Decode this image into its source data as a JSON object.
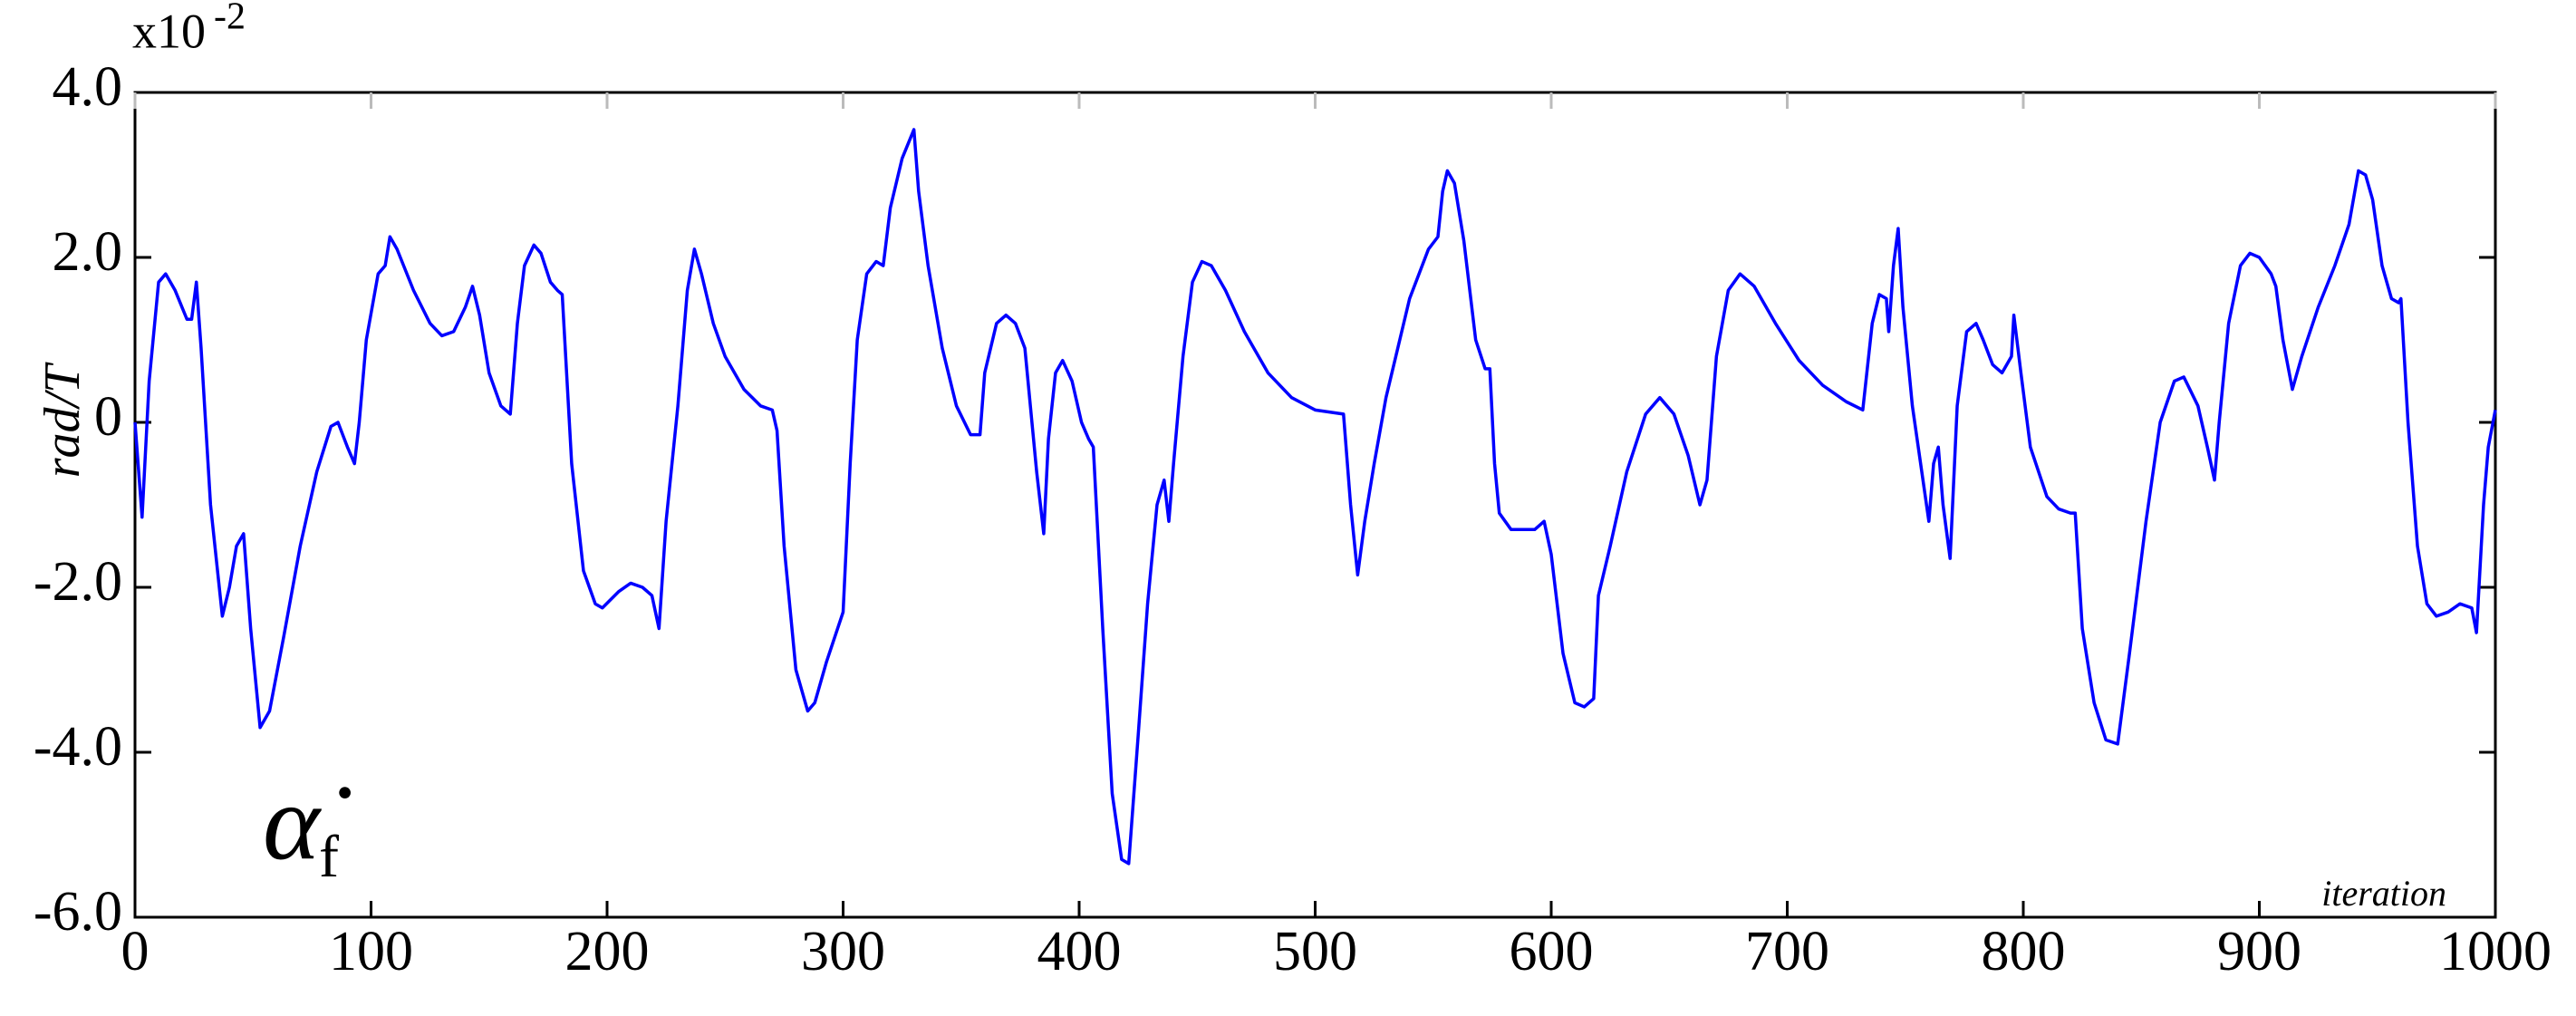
{
  "chart_data": {
    "type": "line",
    "axis_multiplier": {
      "base": "x10",
      "exponent": "-2"
    },
    "ylabel": "rad/T",
    "xlabel": "iteration",
    "annotation": {
      "symbol": "α̇",
      "subscript": "f"
    },
    "xlim": [
      0,
      1000
    ],
    "xticks": [
      0,
      100,
      200,
      300,
      400,
      500,
      600,
      700,
      800,
      900,
      1000
    ],
    "ylim": [
      -6,
      4
    ],
    "yticks": [
      {
        "value": -6,
        "label": "-6.0"
      },
      {
        "value": -4,
        "label": "-4.0"
      },
      {
        "value": -2,
        "label": "-2.0"
      },
      0,
      {
        "value": 2,
        "label": "2.0"
      },
      {
        "value": 4,
        "label": "4.0"
      }
    ],
    "grid": false,
    "x": [
      0,
      3,
      6,
      10,
      13,
      17,
      22,
      24,
      26,
      28,
      32,
      37,
      40,
      43,
      46,
      49,
      53,
      57,
      63,
      70,
      77,
      83,
      86,
      90,
      93,
      95,
      98,
      103,
      106,
      108,
      111,
      118,
      125,
      130,
      135,
      140,
      143,
      146,
      150,
      155,
      159,
      162,
      165,
      169,
      172,
      176,
      179,
      181,
      185,
      190,
      195,
      198,
      205,
      210,
      215,
      219,
      222,
      225,
      230,
      234,
      237,
      240,
      245,
      250,
      258,
      265,
      270,
      272,
      275,
      280,
      285,
      288,
      293,
      300,
      303,
      306,
      310,
      314,
      317,
      320,
      325,
      330,
      332,
      336,
      342,
      348,
      354,
      358,
      360,
      365,
      369,
      373,
      377,
      380,
      382,
      385,
      387,
      390,
      393,
      397,
      401,
      404,
      406,
      410,
      414,
      418,
      421,
      425,
      429,
      433,
      436,
      438,
      440,
      444,
      448,
      452,
      456,
      462,
      470,
      480,
      490,
      500,
      512,
      515,
      518,
      521,
      525,
      530,
      540,
      548,
      552,
      554,
      556,
      559,
      563,
      568,
      572,
      574,
      576,
      578,
      583,
      588,
      593,
      597,
      600,
      605,
      610,
      614,
      618,
      620,
      625,
      632,
      640,
      646,
      652,
      658,
      663,
      666,
      670,
      675,
      680,
      686,
      695,
      705,
      715,
      725,
      732,
      736,
      739,
      742,
      743,
      745,
      747,
      749,
      753,
      757,
      760,
      762,
      764,
      766,
      769,
      772,
      776,
      780,
      783,
      787,
      791,
      795,
      796,
      799,
      803,
      810,
      815,
      820,
      822,
      825,
      830,
      835,
      840,
      845,
      852,
      858,
      864,
      868,
      874,
      878,
      881,
      883,
      887,
      892,
      896,
      900,
      905,
      907,
      910,
      914,
      918,
      925,
      932,
      938,
      942,
      945,
      948,
      952,
      956,
      959,
      960,
      963,
      967,
      971,
      975,
      980,
      985,
      990,
      992,
      995,
      997,
      1000
    ],
    "series": [
      {
        "color": "#0000ff",
        "values": [
          0,
          -1.15,
          0.5,
          1.7,
          1.8,
          1.6,
          1.25,
          1.25,
          1.7,
          0.9,
          -1,
          -2.35,
          -2.0,
          -1.5,
          -1.35,
          -2.5,
          -3.7,
          -3.5,
          -2.6,
          -1.5,
          -0.6,
          -0.05,
          0,
          -0.3,
          -0.5,
          0,
          1.0,
          1.8,
          1.9,
          2.25,
          2.1,
          1.6,
          1.2,
          1.05,
          1.1,
          1.4,
          1.65,
          1.3,
          0.6,
          0.2,
          0.1,
          1.2,
          1.9,
          2.15,
          2.05,
          1.7,
          1.6,
          1.55,
          -0.5,
          -1.8,
          -2.2,
          -2.25,
          -2.05,
          -1.95,
          -2.0,
          -2.1,
          -2.5,
          -1.2,
          0.2,
          1.6,
          2.1,
          1.8,
          1.2,
          0.8,
          0.4,
          0.2,
          0.15,
          -0.1,
          -1.5,
          -3.0,
          -3.5,
          -3.4,
          -2.9,
          -2.3,
          -0.5,
          1.0,
          1.8,
          1.95,
          1.9,
          2.6,
          3.2,
          3.55,
          2.8,
          1.9,
          0.9,
          0.2,
          -0.15,
          -0.15,
          0.6,
          1.2,
          1.3,
          1.2,
          0.9,
          0,
          -0.6,
          -1.35,
          -0.2,
          0.6,
          0.75,
          0.5,
          0,
          -0.2,
          -0.3,
          -2.5,
          -4.5,
          -5.3,
          -5.35,
          -3.8,
          -2.2,
          -1.0,
          -0.7,
          -1.2,
          -0.5,
          0.8,
          1.7,
          1.95,
          1.9,
          1.6,
          1.1,
          0.6,
          0.3,
          0.15,
          0.1,
          -1.0,
          -1.85,
          -1.2,
          -0.5,
          0.3,
          1.5,
          2.1,
          2.25,
          2.8,
          3.05,
          2.9,
          2.2,
          1.0,
          0.65,
          0.65,
          -0.5,
          -1.1,
          -1.3,
          -1.3,
          -1.3,
          -1.2,
          -1.6,
          -2.8,
          -3.4,
          -3.45,
          -3.35,
          -2.1,
          -1.5,
          -0.6,
          0.1,
          0.3,
          0.1,
          -0.4,
          -1.0,
          -0.7,
          0.8,
          1.6,
          1.8,
          1.65,
          1.2,
          0.75,
          0.45,
          0.25,
          0.15,
          1.2,
          1.55,
          1.5,
          1.1,
          1.9,
          2.35,
          1.4,
          0.2,
          -0.6,
          -1.2,
          -0.5,
          -0.3,
          -1.0,
          -1.65,
          0.2,
          1.1,
          1.2,
          1.0,
          0.7,
          0.6,
          0.8,
          1.3,
          0.6,
          -0.3,
          -0.9,
          -1.05,
          -1.1,
          -1.1,
          -2.5,
          -3.4,
          -3.85,
          -3.9,
          -2.8,
          -1.2,
          0,
          0.5,
          0.55,
          0.2,
          -0.3,
          -0.7,
          0,
          1.2,
          1.9,
          2.05,
          2.0,
          1.8,
          1.65,
          1.0,
          0.4,
          0.8,
          1.4,
          1.9,
          2.4,
          3.05,
          3.0,
          2.7,
          1.9,
          1.5,
          1.45,
          1.5,
          0,
          -1.5,
          -2.2,
          -2.35,
          -2.3,
          -2.2,
          -2.25,
          -2.55,
          -1.0,
          -0.3,
          0.15
        ]
      }
    ]
  }
}
